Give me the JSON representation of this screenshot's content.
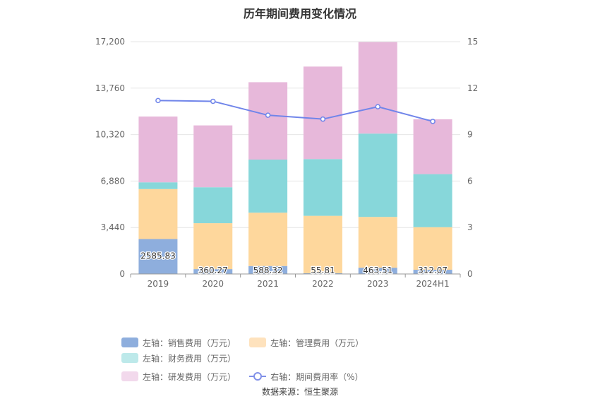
{
  "title": "历年期间费用变化情况",
  "source": "数据来源：恒生聚源",
  "colors": {
    "sales": "#8eaedd",
    "admin": "#fed79c",
    "finance": "#87d7da",
    "rd": "#e7b8da",
    "rate_line": "#7085ea"
  },
  "legend": [
    {
      "label": "左轴：销售费用（万元）",
      "color": "#8eaedd",
      "kind": "bar"
    },
    {
      "label": "左轴：管理费用（万元）",
      "color": "#fee2bd",
      "kind": "bar"
    },
    {
      "label": "左轴：财务费用（万元）",
      "color": "#bde9ea",
      "kind": "bar"
    },
    {
      "label": "左轴：研发费用（万元）",
      "color": "#f2d9ec",
      "kind": "bar"
    },
    {
      "label": "右轴：期间费用率（%）",
      "color": "#8090e8",
      "kind": "line"
    }
  ],
  "chart_data": {
    "type": "bar",
    "stacked": true,
    "categories": [
      "2019",
      "2020",
      "2021",
      "2022",
      "2023",
      "2024H1"
    ],
    "left_axis": {
      "ylim": [
        0,
        17200
      ],
      "ticks": [
        "0",
        "3,440",
        "6,880",
        "10,320",
        "13,760",
        "17,200"
      ]
    },
    "right_axis": {
      "ylim": [
        0,
        15
      ],
      "ticks": [
        "0",
        "3",
        "6",
        "9",
        "12",
        "15"
      ]
    },
    "series": [
      {
        "name": "左轴：销售费用（万元）",
        "key": "sales",
        "values": [
          2585.83,
          360.27,
          588.32,
          55.81,
          463.51,
          312.07
        ],
        "labels": [
          "2585.83",
          "360.27",
          "588.32",
          "55.81",
          "463.51",
          "312.07"
        ]
      },
      {
        "name": "左轴：管理费用（万元）",
        "key": "admin",
        "values": [
          3700,
          3400,
          3950,
          4250,
          3760,
          3150
        ]
      },
      {
        "name": "左轴：财务费用（万元）",
        "key": "finance",
        "values": [
          500,
          2660,
          3930,
          4200,
          6170,
          3930
        ]
      },
      {
        "name": "左轴：研发费用（万元）",
        "key": "rd",
        "values": [
          4870,
          4580,
          5730,
          6850,
          6780,
          4060
        ]
      },
      {
        "name": "右轴：期间费用率（%）",
        "key": "rate",
        "axis": "right",
        "type": "line",
        "values": [
          11.2,
          11.15,
          10.25,
          10.0,
          10.8,
          9.85
        ]
      }
    ],
    "grid": true,
    "legend_position": "bottom"
  }
}
